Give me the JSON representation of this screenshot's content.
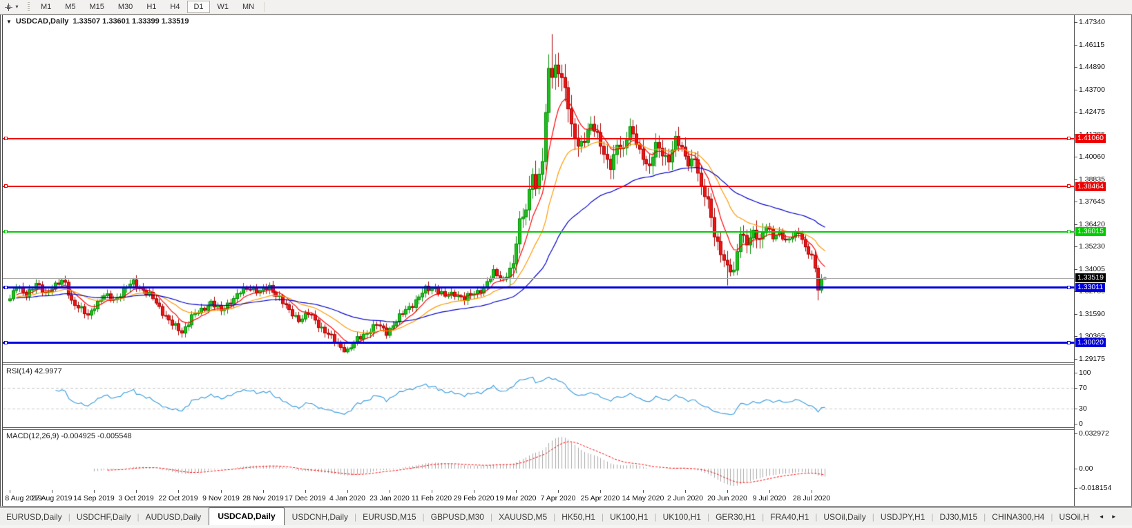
{
  "toolbar": {
    "timeframes": [
      "M1",
      "M5",
      "M15",
      "M30",
      "H1",
      "H4",
      "D1",
      "W1",
      "MN"
    ],
    "active_timeframe": "D1"
  },
  "chart": {
    "title_symbol": "USDCAD,Daily",
    "title_ohlc": "1.33507 1.33601 1.33399 1.33519",
    "price_axis_ticks": [
      "1.47340",
      "1.46115",
      "1.44890",
      "1.43700",
      "1.42475",
      "1.41285",
      "1.40060",
      "1.38835",
      "1.37645",
      "1.36420",
      "1.35230",
      "1.34005",
      "1.32780",
      "1.31590",
      "1.30365",
      "1.29175"
    ],
    "hlines": [
      {
        "price": "1.41060",
        "value": 1.4106,
        "color": "#ee0000",
        "thickness": 2
      },
      {
        "price": "1.38464",
        "value": 1.38464,
        "color": "#ee0000",
        "thickness": 2
      },
      {
        "price": "1.36015",
        "value": 1.36015,
        "color": "#00cc00",
        "thickness": 2
      },
      {
        "price": "1.33011",
        "value": 1.33011,
        "color": "#0000dd",
        "thickness": 3
      },
      {
        "price": "1.30020",
        "value": 1.3002,
        "color": "#0000dd",
        "thickness": 3
      }
    ],
    "current_price": {
      "text": "1.33519",
      "value": 1.33519,
      "label_bg": "#000000",
      "line_color": "#aaaaaa"
    }
  },
  "rsi": {
    "label": "RSI(14) 42.9977",
    "axis_ticks": [
      "100",
      "70",
      "30",
      "0"
    ],
    "levels": [
      70,
      30
    ],
    "current_value": 42.9977
  },
  "macd": {
    "label": "MACD(12,26,9) -0.004925 -0.005548",
    "axis_ticks": [
      "0.032972",
      "0.00",
      "-0.018154"
    ],
    "axis_values": [
      0.032972,
      0.0,
      -0.018154
    ]
  },
  "date_axis": [
    "8 Aug 2019",
    "27 Aug 2019",
    "14 Sep 2019",
    "3 Oct 2019",
    "22 Oct 2019",
    "9 Nov 2019",
    "28 Nov 2019",
    "17 Dec 2019",
    "4 Jan 2020",
    "23 Jan 2020",
    "11 Feb 2020",
    "29 Feb 2020",
    "19 Mar 2020",
    "7 Apr 2020",
    "25 Apr 2020",
    "14 May 2020",
    "2 Jun 2020",
    "20 Jun 2020",
    "9 Jul 2020",
    "28 Jul 2020"
  ],
  "tabs": {
    "items": [
      "EURUSD,Daily",
      "USDCHF,Daily",
      "AUDUSD,Daily",
      "USDCAD,Daily",
      "USDCNH,Daily",
      "EURUSD,M15",
      "GBPUSD,M30",
      "XAUUSD,M5",
      "HK50,H1",
      "UK100,H1",
      "UK100,H1",
      "GER30,H1",
      "FRA40,H1",
      "USOil,Daily",
      "USDJPY,H1",
      "DJ30,M15",
      "CHINA300,H4",
      "USOil,H"
    ],
    "active_index": 3,
    "scroll_left_icon": "◄",
    "scroll_right_icon": "►"
  },
  "chart_data": {
    "type": "candlestick",
    "symbol": "USDCAD",
    "timeframe": "Daily",
    "last_bar": {
      "open": 1.33507,
      "high": 1.33601,
      "low": 1.33399,
      "close": 1.33519
    },
    "price_axis_range": [
      1.28969,
      1.47713
    ],
    "num_candles": 252,
    "close_anchors": [
      [
        0,
        1.324
      ],
      [
        2,
        1.33
      ],
      [
        5,
        1.327
      ],
      [
        8,
        1.3315
      ],
      [
        11,
        1.327
      ],
      [
        13,
        1.3305
      ],
      [
        16,
        1.333
      ],
      [
        17,
        1.332
      ],
      [
        19,
        1.323
      ],
      [
        22,
        1.318
      ],
      [
        24,
        1.3145
      ],
      [
        26,
        1.3205
      ],
      [
        29,
        1.3255
      ],
      [
        32,
        1.3235
      ],
      [
        35,
        1.3285
      ],
      [
        38,
        1.333
      ],
      [
        41,
        1.329
      ],
      [
        44,
        1.324
      ],
      [
        47,
        1.317
      ],
      [
        50,
        1.31
      ],
      [
        53,
        1.306
      ],
      [
        56,
        1.3145
      ],
      [
        59,
        1.3175
      ],
      [
        62,
        1.3225
      ],
      [
        65,
        1.317
      ],
      [
        68,
        1.323
      ],
      [
        71,
        1.3275
      ],
      [
        74,
        1.33
      ],
      [
        77,
        1.328
      ],
      [
        80,
        1.33
      ],
      [
        83,
        1.325
      ],
      [
        86,
        1.317
      ],
      [
        89,
        1.313
      ],
      [
        92,
        1.316
      ],
      [
        95,
        1.31
      ],
      [
        98,
        1.305
      ],
      [
        101,
        1.299
      ],
      [
        104,
        1.2962
      ],
      [
        107,
        1.302
      ],
      [
        110,
        1.306
      ],
      [
        113,
        1.31
      ],
      [
        116,
        1.306
      ],
      [
        119,
        1.312
      ],
      [
        122,
        1.318
      ],
      [
        125,
        1.323
      ],
      [
        128,
        1.329
      ],
      [
        131,
        1.33
      ],
      [
        134,
        1.325
      ],
      [
        137,
        1.327
      ],
      [
        140,
        1.324
      ],
      [
        143,
        1.327
      ],
      [
        146,
        1.33
      ],
      [
        149,
        1.338
      ],
      [
        152,
        1.335
      ],
      [
        155,
        1.342
      ],
      [
        157,
        1.366
      ],
      [
        159,
        1.373
      ],
      [
        161,
        1.392
      ],
      [
        162,
        1.382
      ],
      [
        164,
        1.399
      ],
      [
        165,
        1.424
      ],
      [
        166,
        1.45
      ],
      [
        167,
        1.444
      ],
      [
        168,
        1.449
      ],
      [
        169,
        1.446
      ],
      [
        171,
        1.438
      ],
      [
        173,
        1.418
      ],
      [
        175,
        1.406
      ],
      [
        177,
        1.409
      ],
      [
        179,
        1.419
      ],
      [
        181,
        1.413
      ],
      [
        183,
        1.401
      ],
      [
        185,
        1.395
      ],
      [
        187,
        1.408
      ],
      [
        189,
        1.404
      ],
      [
        191,
        1.416
      ],
      [
        193,
        1.409
      ],
      [
        195,
        1.4
      ],
      [
        197,
        1.394
      ],
      [
        199,
        1.408
      ],
      [
        201,
        1.403
      ],
      [
        203,
        1.398
      ],
      [
        205,
        1.41
      ],
      [
        207,
        1.406
      ],
      [
        209,
        1.397
      ],
      [
        211,
        1.399
      ],
      [
        213,
        1.384
      ],
      [
        215,
        1.378
      ],
      [
        217,
        1.358
      ],
      [
        219,
        1.348
      ],
      [
        221,
        1.342
      ],
      [
        223,
        1.339
      ],
      [
        225,
        1.359
      ],
      [
        227,
        1.354
      ],
      [
        229,
        1.361
      ],
      [
        231,
        1.355
      ],
      [
        233,
        1.363
      ],
      [
        235,
        1.358
      ],
      [
        237,
        1.36
      ],
      [
        239,
        1.354
      ],
      [
        241,
        1.358
      ],
      [
        243,
        1.361
      ],
      [
        245,
        1.351
      ],
      [
        247,
        1.346
      ],
      [
        248,
        1.341
      ],
      [
        249,
        1.33
      ],
      [
        250,
        1.3345
      ],
      [
        251,
        1.33519
      ]
    ],
    "bar_overrides": {
      "103": {
        "low": 1.2951
      },
      "166": {
        "high": 1.456
      },
      "167": {
        "high": 1.4669
      },
      "221": {
        "low": 1.3312
      },
      "249": {
        "low": 1.3232
      },
      "251": {
        "open": 1.33507,
        "high": 1.33601,
        "low": 1.33399,
        "close": 1.33519
      }
    },
    "moving_averages": [
      {
        "period": 8,
        "method": "ema",
        "color": "#ff0000"
      },
      {
        "period": 21,
        "method": "ema",
        "color": "#ff9900"
      },
      {
        "period": 55,
        "method": "ema",
        "color": "#0000cc"
      }
    ],
    "colors": {
      "candle_up_fill": "#1fbf1f",
      "candle_up_stroke": "#008f00",
      "candle_down_fill": "#f01414",
      "candle_down_stroke": "#a80000",
      "rsi_line": "#3d9fe0",
      "rsi_level_dash": "#c8c8c8",
      "macd_histogram": "#a8a8a8",
      "macd_signal": "#ff0000"
    }
  }
}
